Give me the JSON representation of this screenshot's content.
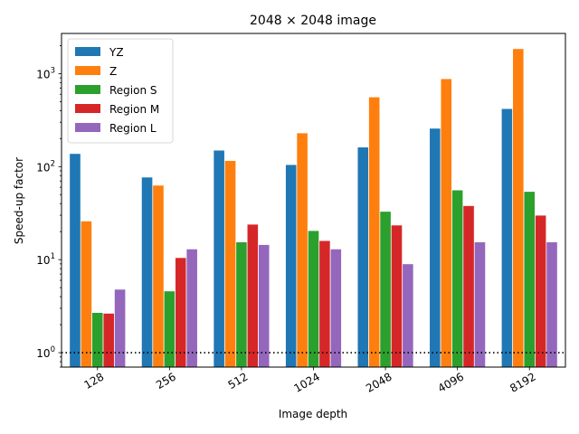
{
  "chart_data": {
    "type": "bar",
    "title": "2048 × 2048 image",
    "xlabel": "Image depth",
    "ylabel": "Speed-up factor",
    "yscale": "log",
    "ylim": [
      0.7,
      2700
    ],
    "yticks": [
      {
        "value": 1,
        "base": "10",
        "exp": "0"
      },
      {
        "value": 10,
        "base": "10",
        "exp": "1"
      },
      {
        "value": 100,
        "base": "10",
        "exp": "2"
      },
      {
        "value": 1000,
        "base": "10",
        "exp": "3"
      }
    ],
    "reference_line": {
      "value": 1,
      "style": "dotted",
      "color": "#000000"
    },
    "legend_position": "top-left",
    "grid": false,
    "categories": [
      "128",
      "256",
      "512",
      "1024",
      "2048",
      "4096",
      "8192"
    ],
    "series": [
      {
        "name": "YZ",
        "color": "#1f77b4",
        "values": [
          138,
          77,
          150,
          105,
          162,
          258,
          420
        ]
      },
      {
        "name": "Z",
        "color": "#ff7f0e",
        "values": [
          26,
          63,
          116,
          230,
          560,
          880,
          1850
        ]
      },
      {
        "name": "Region S",
        "color": "#2ca02c",
        "values": [
          2.7,
          4.6,
          15.5,
          20.5,
          33,
          56,
          54
        ]
      },
      {
        "name": "Region M",
        "color": "#d62728",
        "values": [
          2.65,
          10.5,
          24,
          16,
          23.5,
          38,
          30
        ]
      },
      {
        "name": "Region L",
        "color": "#9467bd",
        "values": [
          4.8,
          13,
          14.5,
          13,
          9,
          15.5,
          15.5
        ]
      }
    ]
  }
}
